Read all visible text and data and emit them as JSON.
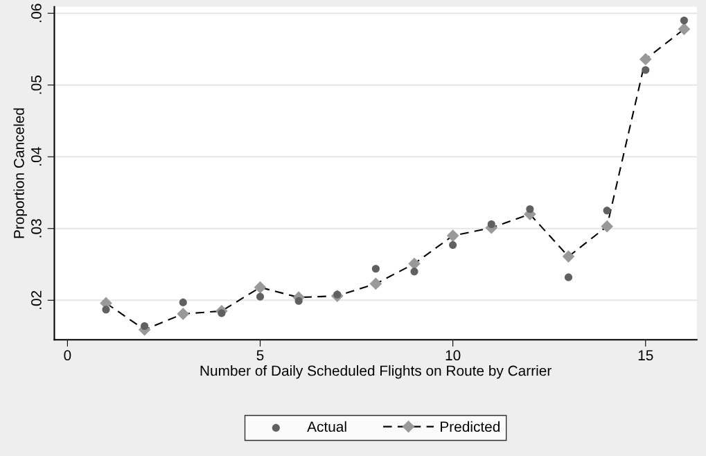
{
  "chart_data": {
    "type": "scatter",
    "xlabel": "Number of Daily Scheduled Flights on Route by Carrier",
    "ylabel": "Proportion Canceled",
    "x": [
      1,
      2,
      3,
      4,
      5,
      6,
      7,
      8,
      9,
      10,
      11,
      12,
      13,
      14,
      15,
      16
    ],
    "series": [
      {
        "name": "Actual",
        "marker": "circle",
        "color": "#606060",
        "values": [
          0.0187,
          0.0164,
          0.0197,
          0.0182,
          0.0205,
          0.0199,
          0.0208,
          0.0244,
          0.024,
          0.0277,
          0.0306,
          0.0327,
          0.0232,
          0.0325,
          0.0521,
          0.059
        ]
      },
      {
        "name": "Predicted",
        "type": "line",
        "marker": "diamond",
        "line_style": "dashed",
        "color": "#999999",
        "values": [
          0.0196,
          0.0159,
          0.0181,
          0.0185,
          0.0218,
          0.0204,
          0.0206,
          0.0223,
          0.0251,
          0.029,
          0.0301,
          0.032,
          0.0261,
          0.0303,
          0.0536,
          0.0578
        ]
      }
    ],
    "xlim": [
      -0.34,
      16.33
    ],
    "xticks": [
      0,
      5,
      10,
      15
    ],
    "ylim": [
      0.0145,
      0.0609
    ],
    "yticks": [
      {
        "value": 0.02,
        "label": ".02"
      },
      {
        "value": 0.03,
        "label": ".03"
      },
      {
        "value": 0.04,
        "label": ".04"
      },
      {
        "value": 0.05,
        "label": ".05"
      },
      {
        "value": 0.06,
        "label": ".06"
      }
    ],
    "grid": "y",
    "legend": "bottom"
  }
}
